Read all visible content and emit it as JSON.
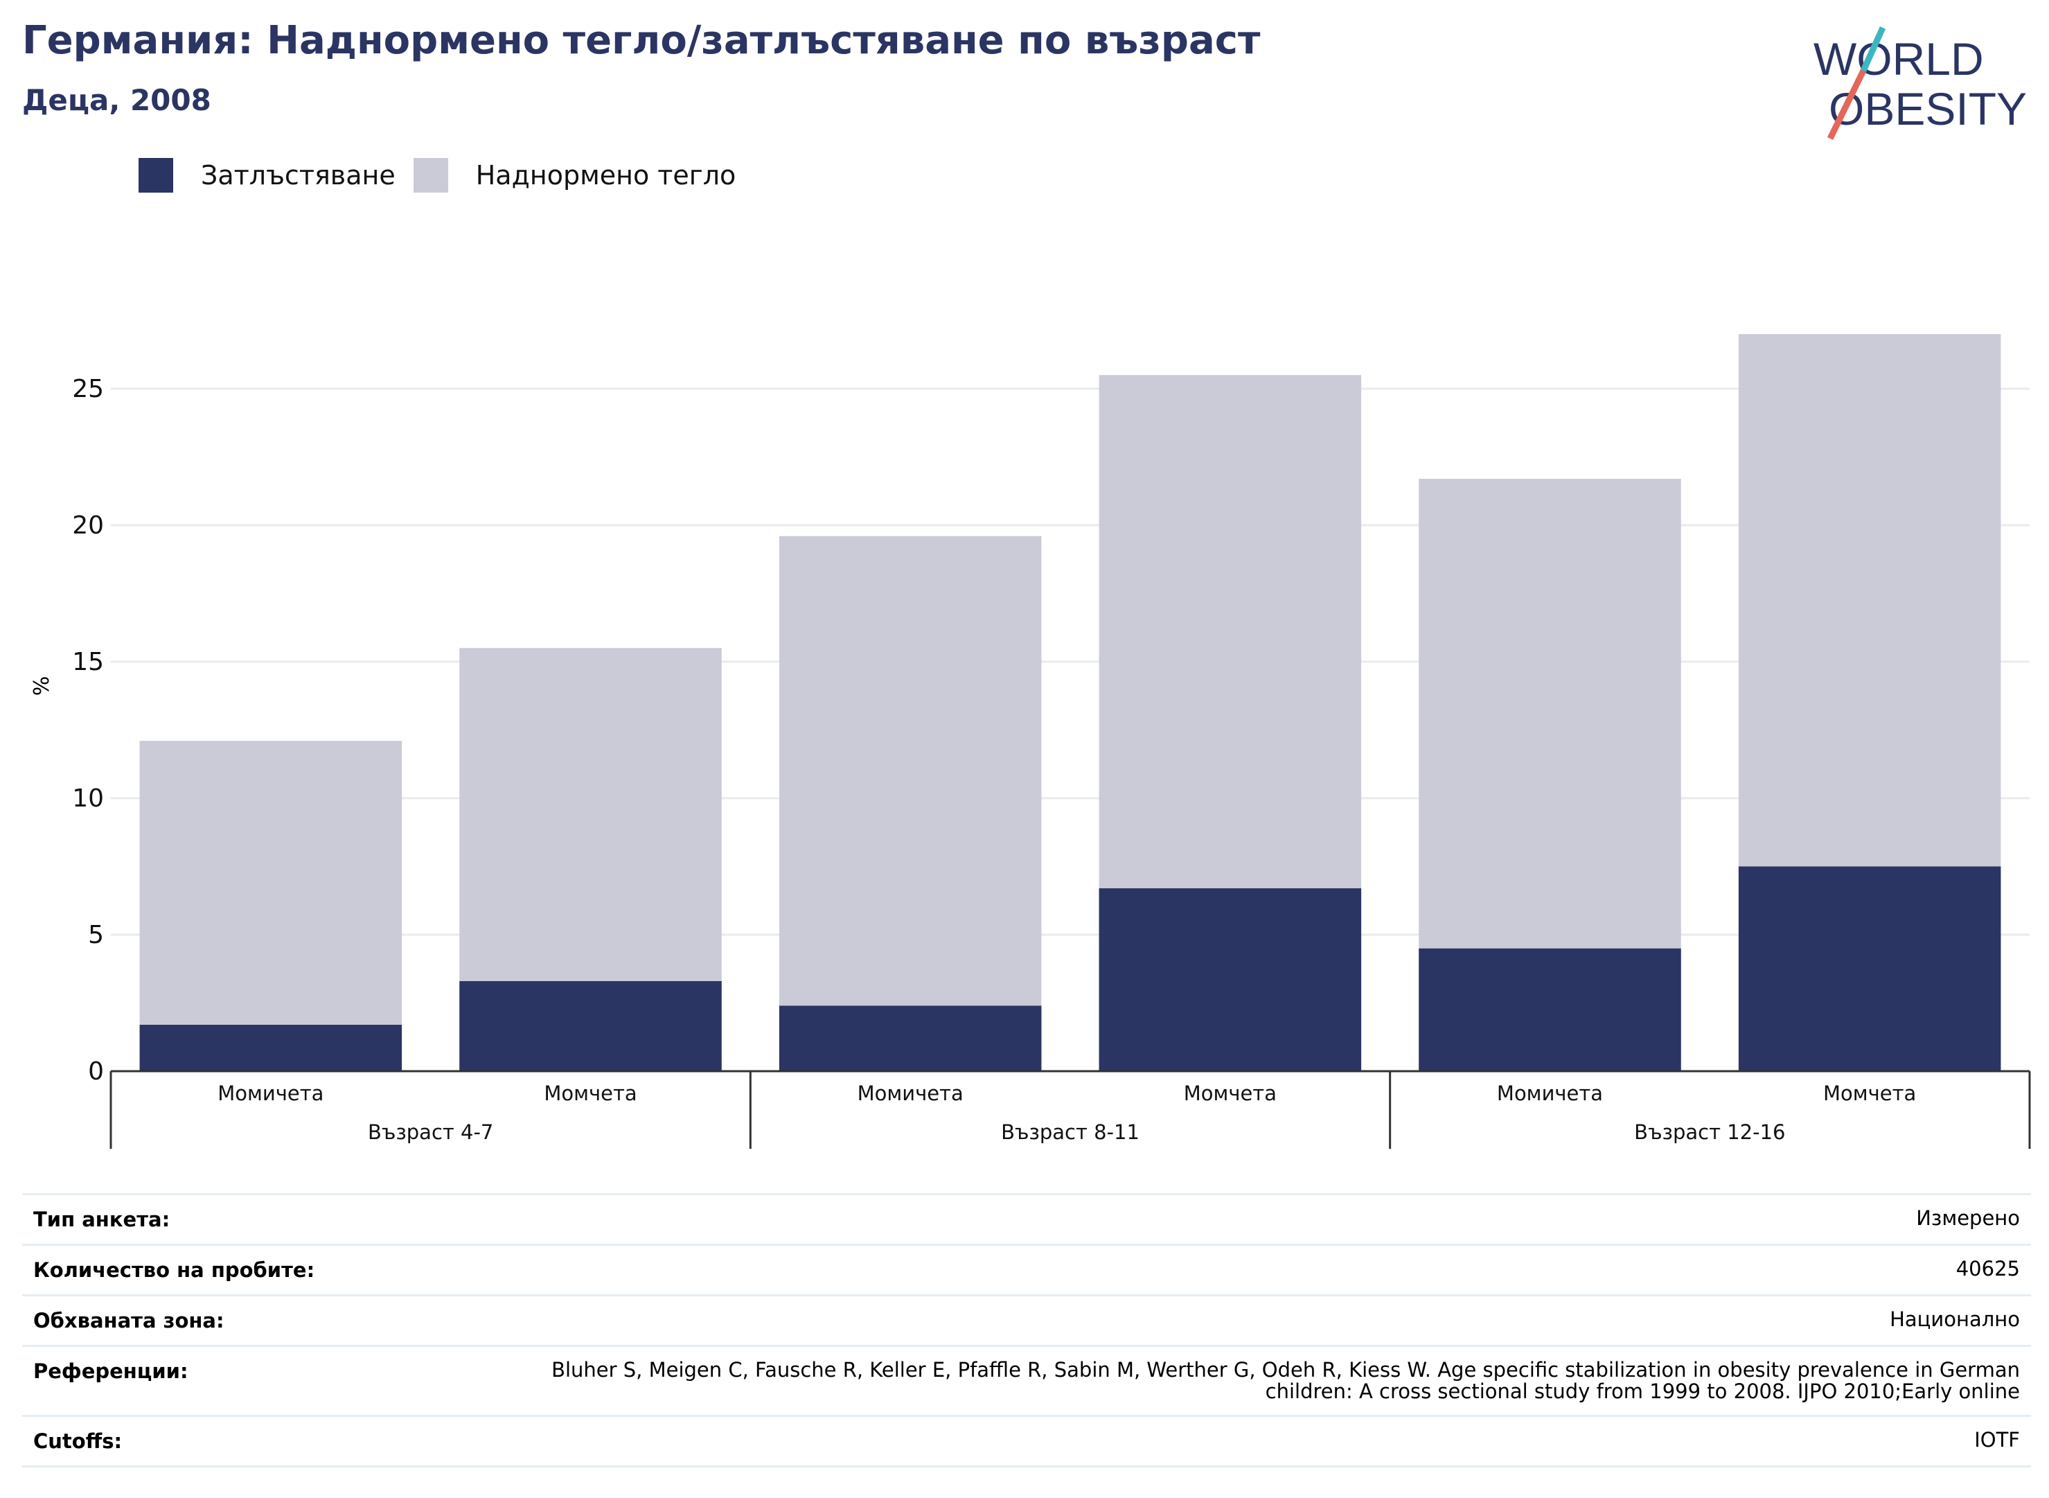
{
  "header": {
    "title": "Германия: Наднормено тегло/затлъстяване по възраст",
    "subtitle": "Деца, 2008"
  },
  "logo": {
    "line1": "WORLD",
    "line2": "OBESITY",
    "slash_teal": "#3bb7bf",
    "slash_red": "#e5675a"
  },
  "legend": [
    {
      "label": "Затлъстяване",
      "color": "#2a3563"
    },
    {
      "label": "Наднормено тегло",
      "color": "#cacbd7"
    }
  ],
  "chart_data": {
    "type": "bar",
    "stacked": true,
    "ylabel": "%",
    "ylim": [
      0,
      28
    ],
    "yticks": [
      0,
      5,
      10,
      15,
      20,
      25
    ],
    "grid": true,
    "legend_position": "top-left",
    "categories": [
      "Момичета",
      "Момчета",
      "Момичета",
      "Момчета",
      "Момичета",
      "Момчета"
    ],
    "groups": [
      {
        "label": "Възраст 4-7",
        "span": 2
      },
      {
        "label": "Възраст 8-11",
        "span": 2
      },
      {
        "label": "Възраст 12-16",
        "span": 2
      }
    ],
    "series": [
      {
        "name": "Затлъстяване",
        "color": "#2a3563",
        "values": [
          1.7,
          3.3,
          2.4,
          6.7,
          4.5,
          7.5
        ]
      },
      {
        "name": "Наднормено тегло",
        "color": "#cacbd7",
        "values": [
          10.4,
          12.2,
          17.2,
          18.8,
          17.2,
          19.5
        ]
      }
    ]
  },
  "meta": [
    {
      "label": "Тип анкета:",
      "value": "Измерено"
    },
    {
      "label": "Количество на пробите:",
      "value": "40625"
    },
    {
      "label": "Обхваната зона:",
      "value": "Национално"
    },
    {
      "label": "Референции:",
      "value": "Bluher S, Meigen C, Fausche R, Keller E, Pfaffle R, Sabin M, Werther G, Odeh R, Kiess W. Age specific stabilization in obesity prevalence in German children: A cross sectional study from 1999 to 2008. IJPO 2010;Early online"
    },
    {
      "label": "Cutoffs:",
      "value": "IOTF"
    }
  ]
}
